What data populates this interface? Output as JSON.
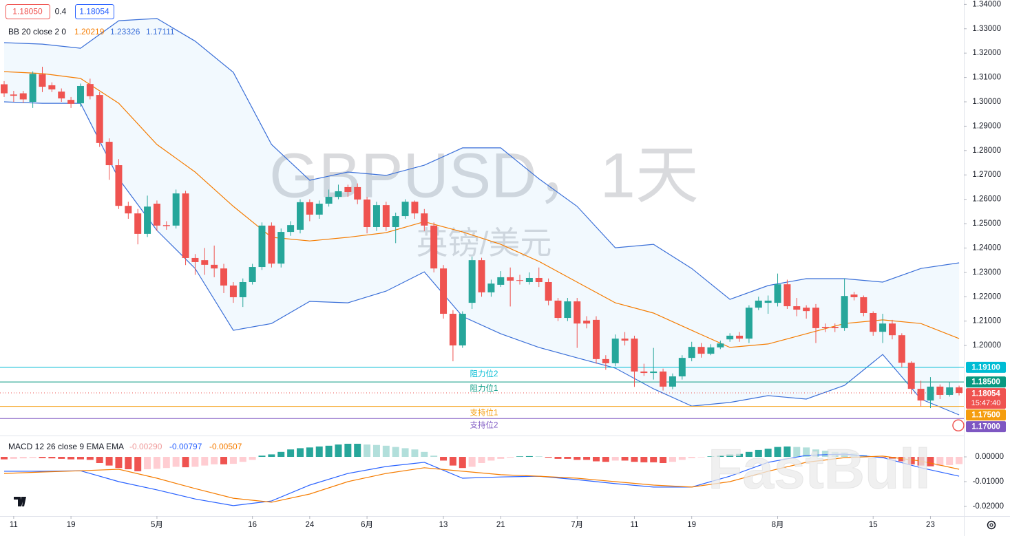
{
  "chart_data": [
    {
      "type": "candlestick",
      "title": "GBPUSD，1天",
      "subtitle": "英镑/美元",
      "quote": {
        "bid": "1.18050",
        "spread": "0.4",
        "ask": "1.18054"
      },
      "up_color": "#26a69a",
      "down_color": "#ef5350",
      "xlim": [
        -0.433,
        100.5
      ],
      "ylim": [
        1.1633,
        1.3418
      ],
      "grid": false,
      "xticks": [
        {
          "value": 1,
          "label": "11"
        },
        {
          "value": 7,
          "label": "19"
        },
        {
          "value": 16,
          "label": "5月"
        },
        {
          "value": 26,
          "label": "16"
        },
        {
          "value": 32,
          "label": "24"
        },
        {
          "value": 38,
          "label": "6月"
        },
        {
          "value": 46,
          "label": "13"
        },
        {
          "value": 52,
          "label": "21"
        },
        {
          "value": 60,
          "label": "7月"
        },
        {
          "value": 66,
          "label": "11"
        },
        {
          "value": 72,
          "label": "19"
        },
        {
          "value": 81,
          "label": "8月"
        },
        {
          "value": 91,
          "label": "15"
        },
        {
          "value": 97,
          "label": "23"
        }
      ],
      "yticks": [
        {
          "value": 1.34,
          "label": "1.34000"
        },
        {
          "value": 1.33,
          "label": "1.33000"
        },
        {
          "value": 1.32,
          "label": "1.32000"
        },
        {
          "value": 1.31,
          "label": "1.31000"
        },
        {
          "value": 1.3,
          "label": "1.30000"
        },
        {
          "value": 1.29,
          "label": "1.29000"
        },
        {
          "value": 1.28,
          "label": "1.28000"
        },
        {
          "value": 1.27,
          "label": "1.27000"
        },
        {
          "value": 1.26,
          "label": "1.26000"
        },
        {
          "value": 1.25,
          "label": "1.25000"
        },
        {
          "value": 1.24,
          "label": "1.24000"
        },
        {
          "value": 1.23,
          "label": "1.23000"
        },
        {
          "value": 1.22,
          "label": "1.22000"
        },
        {
          "value": 1.21,
          "label": "1.21000"
        },
        {
          "value": 1.2,
          "label": "1.20000"
        }
      ],
      "open": [
        1.3072,
        1.303,
        1.3035,
        1.3,
        1.3113,
        1.3068,
        1.3042,
        1.3008,
        1.2994,
        1.3073,
        1.3028,
        1.2836,
        1.274,
        1.2573,
        1.2542,
        1.2458,
        1.2582,
        1.2494,
        1.2492,
        1.2624,
        1.2359,
        1.235,
        1.2331,
        1.2316,
        1.2246,
        1.2198,
        1.226,
        1.2322,
        1.2492,
        1.2336,
        1.2466,
        1.2475,
        1.2588,
        1.2537,
        1.2582,
        1.261,
        1.265,
        1.265,
        1.2599,
        1.2486,
        1.2576,
        1.2486,
        1.2531,
        1.259,
        1.2542,
        1.2492,
        1.2316,
        1.213,
        1.2,
        1.2175,
        1.235,
        1.2218,
        1.2249,
        1.228,
        1.2268,
        1.226,
        1.2277,
        1.226,
        1.2184,
        1.2113,
        1.2181,
        1.2102,
        1.2105,
        1.1944,
        1.1927,
        1.2028,
        1.2028,
        1.1893,
        1.1887,
        1.1893,
        1.1831,
        1.1873,
        1.1949,
        1.1994,
        1.1966,
        1.1992,
        1.2025,
        1.204,
        1.2028,
        1.2155,
        1.2175,
        1.2175,
        1.2251,
        1.2161,
        1.2155,
        1.2155,
        1.2076,
        1.2076,
        1.2071,
        1.2209,
        1.2198,
        1.2133,
        1.2056,
        1.209,
        1.2042,
        1.1929,
        1.1822,
        1.1774,
        1.1831,
        1.1797,
        1.1828
      ],
      "high": [
        1.3085,
        1.3045,
        1.3045,
        1.3125,
        1.3144,
        1.308,
        1.3055,
        1.302,
        1.3075,
        1.3095,
        1.304,
        1.285,
        1.2765,
        1.259,
        1.256,
        1.2615,
        1.2595,
        1.251,
        1.264,
        1.2635,
        1.2375,
        1.24,
        1.241,
        1.2335,
        1.226,
        1.2275,
        1.2335,
        1.2505,
        1.2505,
        1.248,
        1.251,
        1.26,
        1.26,
        1.2595,
        1.264,
        1.266,
        1.266,
        1.2665,
        1.261,
        1.259,
        1.259,
        1.2545,
        1.26,
        1.2595,
        1.256,
        1.2505,
        1.233,
        1.2145,
        1.214,
        1.2365,
        1.236,
        1.227,
        1.2305,
        1.232,
        1.229,
        1.23,
        1.232,
        1.2275,
        1.2195,
        1.2195,
        1.2195,
        1.212,
        1.212,
        1.196,
        1.2045,
        1.2055,
        1.204,
        1.1925,
        1.199,
        1.1905,
        1.1885,
        1.196,
        1.2015,
        1.201,
        1.2005,
        1.202,
        1.205,
        1.2055,
        1.2165,
        1.22,
        1.2205,
        1.2295,
        1.227,
        1.2195,
        1.2165,
        1.217,
        1.209,
        1.209,
        1.2275,
        1.222,
        1.2205,
        1.214,
        1.213,
        1.2105,
        1.205,
        1.1935,
        1.1855,
        1.187,
        1.184,
        1.185,
        1.1835
      ],
      "low": [
        1.302,
        1.3,
        1.2995,
        1.2975,
        1.304,
        1.304,
        1.3,
        1.2975,
        1.298,
        1.301,
        1.2815,
        1.268,
        1.256,
        1.252,
        1.2415,
        1.2445,
        1.247,
        1.2475,
        1.248,
        1.233,
        1.229,
        1.229,
        1.228,
        1.2215,
        1.2175,
        1.2158,
        1.225,
        1.231,
        1.232,
        1.232,
        1.245,
        1.246,
        1.251,
        1.252,
        1.257,
        1.26,
        1.261,
        1.258,
        1.246,
        1.247,
        1.247,
        1.242,
        1.252,
        1.252,
        1.247,
        1.23,
        1.211,
        1.1935,
        1.199,
        1.215,
        1.22,
        1.22,
        1.224,
        1.216,
        1.225,
        1.225,
        1.224,
        1.2165,
        1.21,
        1.21,
        1.199,
        1.207,
        1.1925,
        1.19,
        1.1915,
        1.2,
        1.183,
        1.1875,
        1.186,
        1.1815,
        1.182,
        1.186,
        1.1935,
        1.195,
        1.196,
        1.1985,
        1.2015,
        1.2015,
        1.201,
        1.2145,
        1.213,
        1.216,
        1.215,
        1.212,
        1.211,
        1.201,
        1.2055,
        1.2055,
        1.206,
        1.2185,
        1.212,
        1.204,
        1.201,
        1.2025,
        1.191,
        1.18,
        1.175,
        1.1743,
        1.178,
        1.179,
        1.1795
      ],
      "close": [
        1.3035,
        1.3025,
        1.301,
        1.3115,
        1.3062,
        1.3051,
        1.3014,
        1.2992,
        1.3065,
        1.3023,
        1.2831,
        1.274,
        1.2573,
        1.2542,
        1.2458,
        1.257,
        1.2492,
        1.249,
        1.2624,
        1.2359,
        1.2342,
        1.2331,
        1.2316,
        1.2246,
        1.2198,
        1.226,
        1.2322,
        1.2492,
        1.2336,
        1.2466,
        1.2494,
        1.2588,
        1.2537,
        1.2582,
        1.261,
        1.2633,
        1.263,
        1.2599,
        1.2486,
        1.2576,
        1.2486,
        1.2531,
        1.259,
        1.2542,
        1.2492,
        1.2316,
        1.213,
        1.2,
        1.213,
        1.235,
        1.2218,
        1.2254,
        1.228,
        1.2266,
        1.2266,
        1.2277,
        1.226,
        1.2184,
        1.2113,
        1.2181,
        1.209,
        1.209,
        1.1944,
        1.1927,
        1.2028,
        1.202,
        1.1893,
        1.1887,
        1.1893,
        1.1831,
        1.1873,
        1.1949,
        1.1994,
        1.1966,
        1.1992,
        1.2008,
        1.204,
        1.2028,
        1.2155,
        1.2184,
        1.2184,
        1.2251,
        1.2161,
        1.2147,
        1.2141,
        1.2071,
        1.2071,
        1.2071,
        1.2203,
        1.2198,
        1.2133,
        1.2056,
        1.209,
        1.2042,
        1.1929,
        1.1822,
        1.1774,
        1.1831,
        1.1797,
        1.1828,
        1.1805
      ],
      "bands": {
        "label": "BB 20 close 2 0",
        "legend_values": [
          "1.20219",
          "1.23326",
          "1.17111"
        ],
        "middle_color": "#f57c00",
        "band_color": "#3a6fd8",
        "fill": "#2196f3",
        "x": [
          0,
          4,
          8,
          12,
          16,
          20,
          24,
          28,
          32,
          36,
          40,
          44,
          48,
          52,
          56,
          60,
          64,
          68,
          72,
          76,
          80,
          84,
          88,
          92,
          96,
          100
        ],
        "upper": [
          1.3243,
          1.3237,
          1.322,
          1.3333,
          1.3342,
          1.3249,
          1.3121,
          1.2825,
          1.2678,
          1.2712,
          1.2698,
          1.274,
          1.2811,
          1.2811,
          1.2684,
          1.2571,
          1.2401,
          1.2415,
          1.2316,
          1.2189,
          1.2246,
          1.2274,
          1.2274,
          1.226,
          1.2316,
          1.2339
        ],
        "middle": [
          1.3124,
          1.3116,
          1.3096,
          1.2994,
          1.2825,
          1.2712,
          1.2571,
          1.2444,
          1.2429,
          1.2444,
          1.2463,
          1.2508,
          1.2466,
          1.2415,
          1.2345,
          1.226,
          1.2175,
          1.2133,
          1.2062,
          1.1992,
          1.2006,
          1.2048,
          1.209,
          1.2105,
          1.209,
          1.2028
        ],
        "lower": [
          1.3,
          1.2994,
          1.2994,
          1.2684,
          1.2472,
          1.2316,
          1.2062,
          1.209,
          1.2181,
          1.2175,
          1.2223,
          1.2302,
          1.2119,
          1.2048,
          1.1992,
          1.1949,
          1.1907,
          1.1822,
          1.1751,
          1.1766,
          1.1794,
          1.178,
          1.1836,
          1.1963,
          1.178,
          1.1715
        ]
      },
      "levels": [
        {
          "value": 1.191,
          "label": "1.19100",
          "name": "阻力位2",
          "color": "#00bcd4"
        },
        {
          "value": 1.185,
          "label": "1.18500",
          "name": "阻力位1",
          "color": "#089981"
        },
        {
          "value": 1.175,
          "label": "1.17500",
          "name": "支持位1",
          "color": "#f59d0e"
        },
        {
          "value": 1.17,
          "label": "1.17000",
          "name": "支持位2",
          "color": "#7e57c2"
        }
      ],
      "last_price": {
        "value": 1.18054,
        "countdown": "15:47:40",
        "color": "#ef5350"
      }
    },
    {
      "type": "macd",
      "label": "MACD 12 26 close 9 EMA EMA",
      "legend_values": [
        "-0.00290",
        "-0.00797",
        "-0.00507"
      ],
      "watermark": "FastBull",
      "ylim": [
        -0.02389,
        0.00778
      ],
      "yticks": [
        {
          "value": 0,
          "label": "0.00000"
        },
        {
          "value": -0.01,
          "label": "-0.01000"
        },
        {
          "value": -0.02,
          "label": "-0.02000"
        }
      ],
      "histogram_colors": {
        "up_strong": "#26a69a",
        "up_weak": "#b2dfdb",
        "down_strong": "#ef5350",
        "down_weak": "#ffcdd2"
      },
      "histogram": [
        -0.001,
        -0.0008,
        -0.0006,
        -0.0004,
        -0.0005,
        -0.0006,
        -0.0008,
        -0.001,
        -0.001,
        -0.0012,
        -0.0025,
        -0.0035,
        -0.0045,
        -0.005,
        -0.0058,
        -0.005,
        -0.0048,
        -0.0045,
        -0.004,
        -0.0042,
        -0.004,
        -0.0035,
        -0.003,
        -0.003,
        -0.0028,
        -0.002,
        -0.0012,
        0.0005,
        0.001,
        0.002,
        0.003,
        0.0035,
        0.0038,
        0.0042,
        0.0045,
        0.005,
        0.0053,
        0.0053,
        0.005,
        0.0048,
        0.0045,
        0.004,
        0.0035,
        0.003,
        0.002,
        0.0005,
        -0.0015,
        -0.0035,
        -0.0045,
        -0.004,
        -0.0025,
        -0.0015,
        -0.0008,
        -0.0003,
        0.0002,
        0.0003,
        0.0002,
        -0.0003,
        -0.0008,
        -0.0008,
        -0.0012,
        -0.0012,
        -0.0018,
        -0.002,
        -0.0015,
        -0.0015,
        -0.002,
        -0.0022,
        -0.0022,
        -0.0025,
        -0.002,
        -0.0012,
        -0.0005,
        -0.0002,
        0.0002,
        0.0005,
        0.001,
        0.0012,
        0.002,
        0.0028,
        0.0033,
        0.004,
        0.0042,
        0.004,
        0.0038,
        0.003,
        0.0025,
        0.002,
        0.0018,
        0.0014,
        0.0008,
        0.0002,
        -0.0002,
        -0.0008,
        -0.0018,
        -0.003,
        -0.0035,
        -0.0038,
        -0.0036,
        -0.0033,
        -0.0029
      ],
      "macd": {
        "color": "#2962ff",
        "x": [
          0,
          4,
          8,
          12,
          16,
          20,
          24,
          28,
          32,
          36,
          40,
          44,
          48,
          52,
          56,
          60,
          64,
          68,
          72,
          76,
          80,
          84,
          88,
          92,
          96,
          100
        ],
        "values": [
          -0.0058,
          -0.0058,
          -0.0056,
          -0.01,
          -0.0133,
          -0.017,
          -0.0197,
          -0.0178,
          -0.0114,
          -0.0067,
          -0.0039,
          -0.0022,
          -0.0086,
          -0.0081,
          -0.0078,
          -0.0092,
          -0.0108,
          -0.0122,
          -0.0122,
          -0.0078,
          -0.0022,
          0.0006,
          0.0011,
          -0.0003,
          -0.0044,
          -0.0078
        ]
      },
      "signal": {
        "color": "#f57c00",
        "x": [
          0,
          4,
          8,
          12,
          16,
          20,
          24,
          28,
          32,
          36,
          40,
          44,
          48,
          52,
          56,
          60,
          64,
          68,
          72,
          76,
          80,
          84,
          88,
          92,
          96,
          100
        ],
        "values": [
          -0.0067,
          -0.0061,
          -0.0056,
          -0.005,
          -0.0086,
          -0.0128,
          -0.0167,
          -0.0183,
          -0.015,
          -0.01,
          -0.0067,
          -0.0044,
          -0.0058,
          -0.0072,
          -0.0078,
          -0.0086,
          -0.01,
          -0.0114,
          -0.0122,
          -0.01,
          -0.0058,
          -0.0022,
          -0.0003,
          0.0003,
          -0.0017,
          -0.005
        ]
      }
    }
  ]
}
